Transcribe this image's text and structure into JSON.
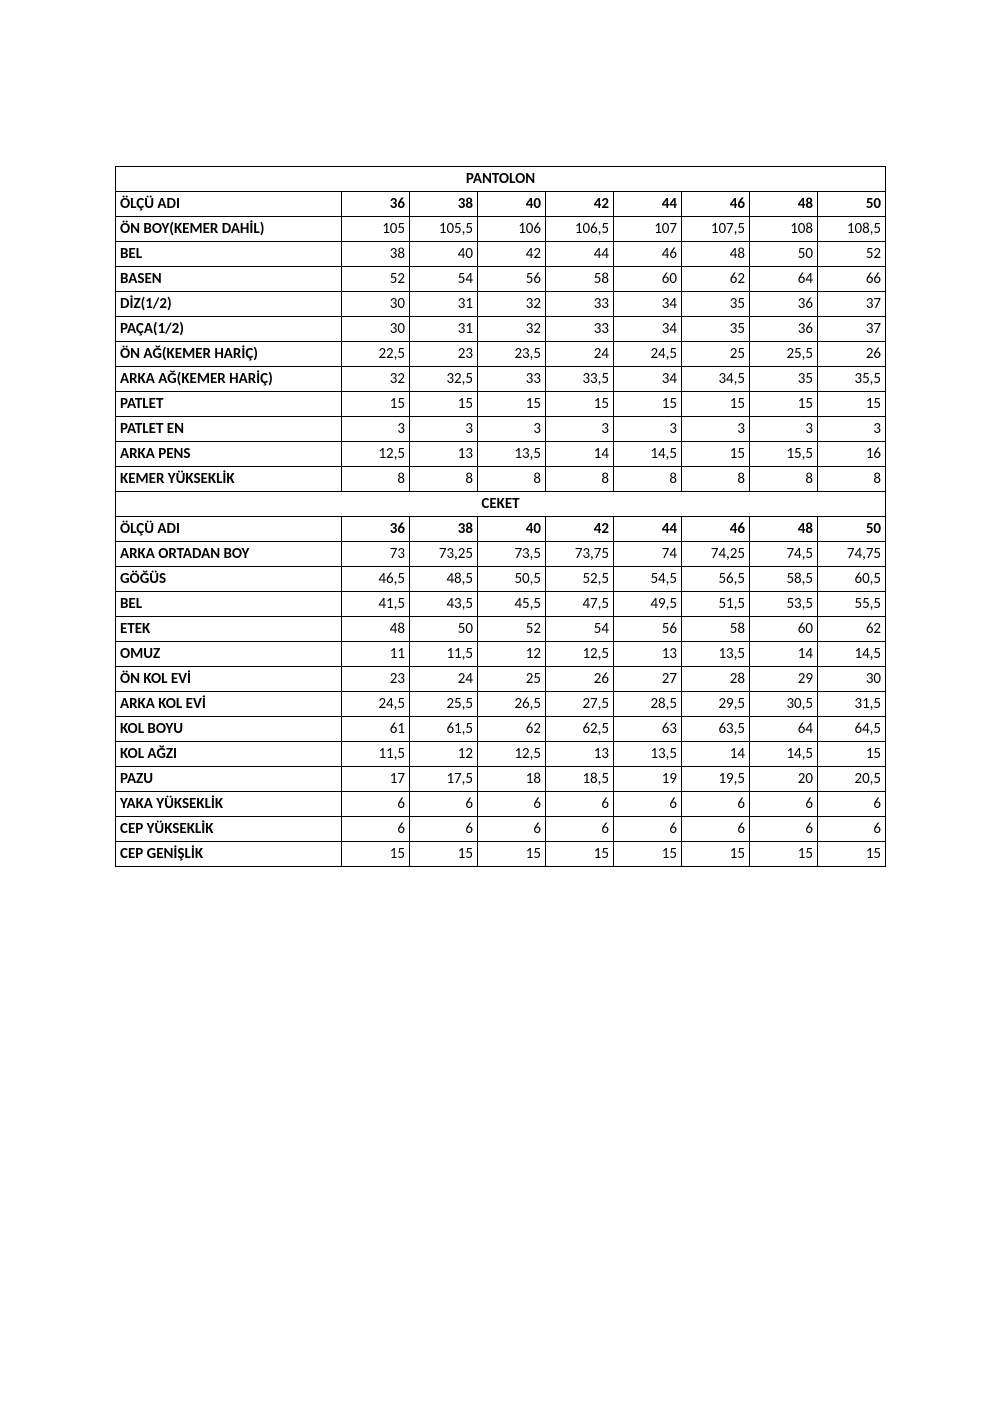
{
  "sections": [
    {
      "title": "PANTOLON",
      "header_label": "ÖLÇÜ ADI",
      "sizes": [
        "36",
        "38",
        "40",
        "42",
        "44",
        "46",
        "48",
        "50"
      ],
      "rows": [
        {
          "label": "ÖN BOY(KEMER DAHİL)",
          "vals": [
            "105",
            "105,5",
            "106",
            "106,5",
            "107",
            "107,5",
            "108",
            "108,5"
          ]
        },
        {
          "label": "BEL",
          "vals": [
            "38",
            "40",
            "42",
            "44",
            "46",
            "48",
            "50",
            "52"
          ]
        },
        {
          "label": "BASEN",
          "vals": [
            "52",
            "54",
            "56",
            "58",
            "60",
            "62",
            "64",
            "66"
          ]
        },
        {
          "label": "DİZ(1/2)",
          "vals": [
            "30",
            "31",
            "32",
            "33",
            "34",
            "35",
            "36",
            "37"
          ]
        },
        {
          "label": "PAÇA(1/2)",
          "vals": [
            "30",
            "31",
            "32",
            "33",
            "34",
            "35",
            "36",
            "37"
          ]
        },
        {
          "label": "ÖN AĞ(KEMER HARİÇ)",
          "vals": [
            "22,5",
            "23",
            "23,5",
            "24",
            "24,5",
            "25",
            "25,5",
            "26"
          ]
        },
        {
          "label": "ARKA AĞ(KEMER HARİÇ)",
          "vals": [
            "32",
            "32,5",
            "33",
            "33,5",
            "34",
            "34,5",
            "35",
            "35,5"
          ]
        },
        {
          "label": "PATLET",
          "vals": [
            "15",
            "15",
            "15",
            "15",
            "15",
            "15",
            "15",
            "15"
          ]
        },
        {
          "label": "PATLET EN",
          "vals": [
            "3",
            "3",
            "3",
            "3",
            "3",
            "3",
            "3",
            "3"
          ]
        },
        {
          "label": "ARKA PENS",
          "vals": [
            "12,5",
            "13",
            "13,5",
            "14",
            "14,5",
            "15",
            "15,5",
            "16"
          ]
        },
        {
          "label": "KEMER YÜKSEKLİK",
          "vals": [
            "8",
            "8",
            "8",
            "8",
            "8",
            "8",
            "8",
            "8"
          ]
        }
      ]
    },
    {
      "title": "CEKET",
      "header_label": "ÖLÇÜ ADI",
      "sizes": [
        "36",
        "38",
        "40",
        "42",
        "44",
        "46",
        "48",
        "50"
      ],
      "rows": [
        {
          "label": "ARKA ORTADAN BOY",
          "vals": [
            "73",
            "73,25",
            "73,5",
            "73,75",
            "74",
            "74,25",
            "74,5",
            "74,75"
          ]
        },
        {
          "label": "GÖĞÜS",
          "vals": [
            "46,5",
            "48,5",
            "50,5",
            "52,5",
            "54,5",
            "56,5",
            "58,5",
            "60,5"
          ]
        },
        {
          "label": "BEL",
          "vals": [
            "41,5",
            "43,5",
            "45,5",
            "47,5",
            "49,5",
            "51,5",
            "53,5",
            "55,5"
          ]
        },
        {
          "label": "ETEK",
          "vals": [
            "48",
            "50",
            "52",
            "54",
            "56",
            "58",
            "60",
            "62"
          ]
        },
        {
          "label": "OMUZ",
          "vals": [
            "11",
            "11,5",
            "12",
            "12,5",
            "13",
            "13,5",
            "14",
            "14,5"
          ]
        },
        {
          "label": "ÖN KOL EVİ",
          "vals": [
            "23",
            "24",
            "25",
            "26",
            "27",
            "28",
            "29",
            "30"
          ]
        },
        {
          "label": "ARKA KOL EVİ",
          "vals": [
            "24,5",
            "25,5",
            "26,5",
            "27,5",
            "28,5",
            "29,5",
            "30,5",
            "31,5"
          ]
        },
        {
          "label": "KOL BOYU",
          "vals": [
            "61",
            "61,5",
            "62",
            "62,5",
            "63",
            "63,5",
            "64",
            "64,5"
          ]
        },
        {
          "label": "KOL AĞZI",
          "vals": [
            "11,5",
            "12",
            "12,5",
            "13",
            "13,5",
            "14",
            "14,5",
            "15"
          ]
        },
        {
          "label": "PAZU",
          "vals": [
            "17",
            "17,5",
            "18",
            "18,5",
            "19",
            "19,5",
            "20",
            "20,5"
          ]
        },
        {
          "label": "YAKA YÜKSEKLİK",
          "vals": [
            "6",
            "6",
            "6",
            "6",
            "6",
            "6",
            "6",
            "6"
          ]
        },
        {
          "label": "CEP YÜKSEKLİK",
          "vals": [
            "6",
            "6",
            "6",
            "6",
            "6",
            "6",
            "6",
            "6"
          ]
        },
        {
          "label": "CEP GENİŞLİK",
          "vals": [
            "15",
            "15",
            "15",
            "15",
            "15",
            "15",
            "15",
            "15"
          ]
        }
      ]
    }
  ]
}
